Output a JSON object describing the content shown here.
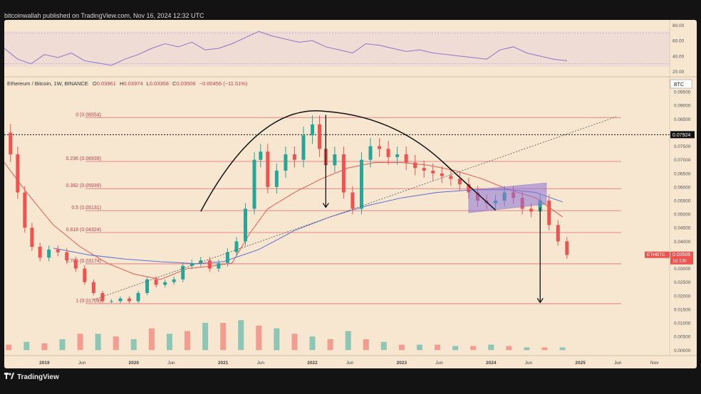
{
  "header": {
    "published": "bitcoinwallah published on TradingView.com, Nov 16, 2024 12:32 UTC"
  },
  "footer": {
    "logo_icon": "tradingview-logo-icon",
    "brand": "TradingView"
  },
  "symbol_line": {
    "name": "Ethereum / Bitcoin, 1W, BINANCE",
    "o_label": "O",
    "o": "0.03961",
    "h_label": "H",
    "h": "0.03974",
    "l_label": "L",
    "l": "0.03358",
    "c_label": "C",
    "c": "0.03506",
    "change": "−0.00456 (−11.51%)"
  },
  "currency_badge": "BTC",
  "price_tag": {
    "ticker": "ETHBTC",
    "value": "0.03506",
    "countdown": "1d 13h"
  },
  "dotted_level_label": "0.07924",
  "colors": {
    "background": "#f7e6d0",
    "fib_line": "#e26a73",
    "fib_text": "#c2404e",
    "up_candle": "#26a69a",
    "down_candle": "#ef5350",
    "ma_red": "#e65a55",
    "ma_blue": "#5b70d6",
    "rsi_line": "#8f76c8",
    "box_fill": "#8b73d9",
    "arc": "#111111"
  },
  "chart_data": {
    "type": "line",
    "symbol": "ETHBTC",
    "interval": "1W",
    "x_tick_labels": [
      "2019",
      "Jun",
      "2020",
      "Jun",
      "2021",
      "Jun",
      "2022",
      "Jun",
      "2023",
      "Jun",
      "2024",
      "Jun",
      "2025",
      "Jun",
      "Nov"
    ],
    "x_ticks": [
      2019.0,
      2019.42,
      2020.0,
      2020.42,
      2021.0,
      2021.42,
      2022.0,
      2022.42,
      2023.0,
      2023.42,
      2024.0,
      2024.42,
      2025.0,
      2025.42,
      2025.83
    ],
    "y_tick_labels": [
      "0.00000",
      "0.00500",
      "0.01000",
      "0.01500",
      "0.02000",
      "0.02500",
      "0.03000",
      "0.03500",
      "0.04000",
      "0.04500",
      "0.05000",
      "0.05500",
      "0.06000",
      "0.06500",
      "0.07000",
      "0.07500",
      "0.08000",
      "0.08500",
      "0.09000",
      "0.09500"
    ],
    "y_ticks": [
      0.0,
      0.005,
      0.01,
      0.015,
      0.02,
      0.025,
      0.03,
      0.035,
      0.04,
      0.045,
      0.05,
      0.055,
      0.06,
      0.065,
      0.07,
      0.075,
      0.08,
      0.085,
      0.09,
      0.095
    ],
    "ylim": [
      -0.0015,
      0.1
    ],
    "xlim": [
      2018.55,
      2026.0
    ],
    "price_series": {
      "name": "ETHBTC",
      "x": [
        2018.55,
        2018.62,
        2018.7,
        2018.78,
        2018.86,
        2018.95,
        2019.05,
        2019.15,
        2019.25,
        2019.35,
        2019.45,
        2019.55,
        2019.65,
        2019.75,
        2019.85,
        2019.95,
        2020.05,
        2020.15,
        2020.25,
        2020.35,
        2020.45,
        2020.55,
        2020.65,
        2020.75,
        2020.85,
        2020.95,
        2021.05,
        2021.15,
        2021.25,
        2021.35,
        2021.42,
        2021.5,
        2021.6,
        2021.7,
        2021.8,
        2021.9,
        2022.0,
        2022.08,
        2022.15,
        2022.25,
        2022.35,
        2022.45,
        2022.55,
        2022.65,
        2022.75,
        2022.85,
        2022.95,
        2023.05,
        2023.15,
        2023.25,
        2023.35,
        2023.45,
        2023.55,
        2023.65,
        2023.75,
        2023.85,
        2023.95,
        2024.05,
        2024.15,
        2024.25,
        2024.35,
        2024.45,
        2024.55,
        2024.65,
        2024.75,
        2024.85
      ],
      "y": [
        0.08,
        0.072,
        0.058,
        0.045,
        0.038,
        0.034,
        0.037,
        0.036,
        0.033,
        0.03,
        0.025,
        0.021,
        0.018,
        0.018,
        0.019,
        0.018,
        0.021,
        0.026,
        0.024,
        0.025,
        0.026,
        0.031,
        0.032,
        0.033,
        0.03,
        0.032,
        0.036,
        0.04,
        0.052,
        0.07,
        0.073,
        0.06,
        0.066,
        0.072,
        0.07,
        0.079,
        0.083,
        0.074,
        0.068,
        0.072,
        0.058,
        0.052,
        0.07,
        0.075,
        0.074,
        0.071,
        0.072,
        0.069,
        0.067,
        0.066,
        0.065,
        0.064,
        0.063,
        0.061,
        0.058,
        0.055,
        0.054,
        0.055,
        0.058,
        0.056,
        0.052,
        0.051,
        0.055,
        0.046,
        0.04,
        0.035
      ]
    },
    "ma_red": {
      "x": [
        2018.55,
        2018.8,
        2019.1,
        2019.4,
        2019.7,
        2020.0,
        2020.3,
        2020.6,
        2020.9,
        2021.1,
        2021.3,
        2021.5,
        2021.8,
        2022.1,
        2022.4,
        2022.7,
        2023.0,
        2023.3,
        2023.6,
        2023.9,
        2024.2,
        2024.5,
        2024.8
      ],
      "y": [
        0.069,
        0.058,
        0.046,
        0.038,
        0.032,
        0.028,
        0.026,
        0.03,
        0.031,
        0.032,
        0.043,
        0.052,
        0.058,
        0.063,
        0.067,
        0.069,
        0.069,
        0.068,
        0.066,
        0.063,
        0.059,
        0.056,
        0.049
      ]
    },
    "ma_blue": {
      "x": [
        2019.1,
        2019.5,
        2019.9,
        2020.3,
        2020.7,
        2021.0,
        2021.4,
        2021.8,
        2022.2,
        2022.6,
        2023.0,
        2023.4,
        2023.8,
        2024.2,
        2024.5,
        2024.8
      ],
      "y": [
        0.0375,
        0.035,
        0.0335,
        0.0325,
        0.0318,
        0.0325,
        0.037,
        0.044,
        0.049,
        0.053,
        0.056,
        0.058,
        0.059,
        0.059,
        0.058,
        0.0545
      ]
    },
    "fib_levels": [
      {
        "label": "0 (0.08554)",
        "value": 0.08554
      },
      {
        "label": "0.236 (0.06939)",
        "value": 0.06939
      },
      {
        "label": "0.382 (0.05939)",
        "value": 0.05939
      },
      {
        "label": "0.5 (0.05131)",
        "value": 0.05131
      },
      {
        "label": "0.618 (0.04324)",
        "value": 0.04324
      },
      {
        "label": "0.786 (0.03174)",
        "value": 0.03174
      },
      {
        "label": "1 (0.01709)",
        "value": 0.01709
      }
    ],
    "dotted_level": 0.07924,
    "rsi": {
      "axis_labels": [
        "80.00",
        "60.00",
        "40.00",
        "20.00"
      ],
      "axis_values": [
        80,
        60,
        40,
        20
      ],
      "band": [
        30,
        70
      ],
      "x": [
        2018.55,
        2018.7,
        2018.85,
        2019.0,
        2019.15,
        2019.3,
        2019.45,
        2019.6,
        2019.75,
        2019.9,
        2020.05,
        2020.2,
        2020.35,
        2020.5,
        2020.65,
        2020.8,
        2020.95,
        2021.1,
        2021.25,
        2021.4,
        2021.55,
        2021.7,
        2021.85,
        2022.0,
        2022.15,
        2022.3,
        2022.45,
        2022.6,
        2022.75,
        2022.9,
        2023.05,
        2023.2,
        2023.35,
        2023.5,
        2023.65,
        2023.8,
        2023.95,
        2024.1,
        2024.25,
        2024.4,
        2024.55,
        2024.7,
        2024.85
      ],
      "y": [
        50,
        36,
        30,
        42,
        38,
        44,
        34,
        31,
        28,
        36,
        42,
        50,
        56,
        52,
        58,
        48,
        50,
        56,
        64,
        72,
        66,
        62,
        58,
        60,
        52,
        48,
        44,
        56,
        54,
        50,
        46,
        48,
        44,
        42,
        40,
        38,
        36,
        48,
        52,
        44,
        40,
        36,
        34
      ]
    },
    "volume": {
      "x": [
        2018.6,
        2018.8,
        2019.0,
        2019.2,
        2019.4,
        2019.6,
        2019.8,
        2020.0,
        2020.2,
        2020.4,
        2020.6,
        2020.8,
        2021.0,
        2021.2,
        2021.4,
        2021.6,
        2021.8,
        2022.0,
        2022.2,
        2022.4,
        2022.6,
        2022.8,
        2023.0,
        2023.2,
        2023.4,
        2023.6,
        2023.8,
        2024.0,
        2024.2,
        2024.4,
        2024.6,
        2024.8
      ],
      "y": [
        0.002,
        0.003,
        0.0025,
        0.004,
        0.006,
        0.006,
        0.005,
        0.004,
        0.008,
        0.006,
        0.007,
        0.01,
        0.01,
        0.011,
        0.009,
        0.008,
        0.006,
        0.005,
        0.004,
        0.007,
        0.004,
        0.003,
        0.002,
        0.002,
        0.002,
        0.0015,
        0.0015,
        0.002,
        0.0015,
        0.001,
        0.001,
        0.001
      ]
    }
  }
}
